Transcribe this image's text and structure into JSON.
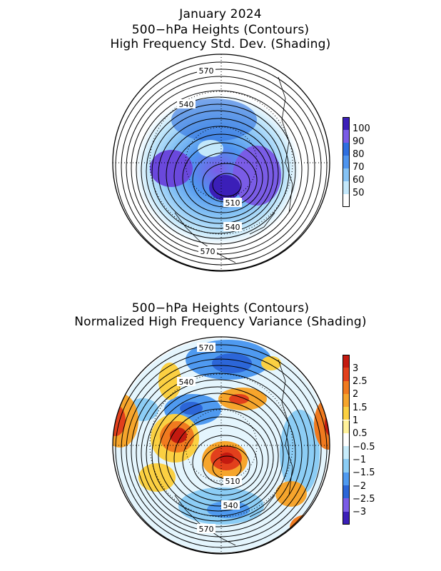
{
  "top_panel": {
    "title_line1": "January 2024",
    "title_line2": "500−hPa Heights (Contours)",
    "title_line3": "High Frequency Std. Dev. (Shading)",
    "contour_labels": [
      "570",
      "540",
      "510",
      "540",
      "570"
    ],
    "colorbar": {
      "labels": [
        "100",
        "90",
        "80",
        "70",
        "60",
        "50"
      ],
      "colors": [
        "#3b1fb8",
        "#7a5ce6",
        "#2f6fe0",
        "#4f95ef",
        "#86c3f5",
        "#c4e8fb",
        "#ffffff"
      ]
    }
  },
  "bottom_panel": {
    "title_line1": "500−hPa Heights (Contours)",
    "title_line2": "Normalized High Frequency Variance (Shading)",
    "contour_labels": [
      "570",
      "540",
      "510",
      "540",
      "570"
    ],
    "colorbar": {
      "labels": [
        "3",
        "2.5",
        "2",
        "1.5",
        "1",
        "0.5",
        "−0.5",
        "−1",
        "−1.5",
        "−2",
        "−2.5",
        "−3"
      ],
      "colors": [
        "#c41a10",
        "#e2401c",
        "#f07a1f",
        "#f6a52c",
        "#fbd042",
        "#fff19a",
        "#ffffff",
        "#c8ecfb",
        "#8ccdf5",
        "#4f9af0",
        "#2c66d8",
        "#7a5ce6",
        "#3b1fb8"
      ]
    }
  }
}
